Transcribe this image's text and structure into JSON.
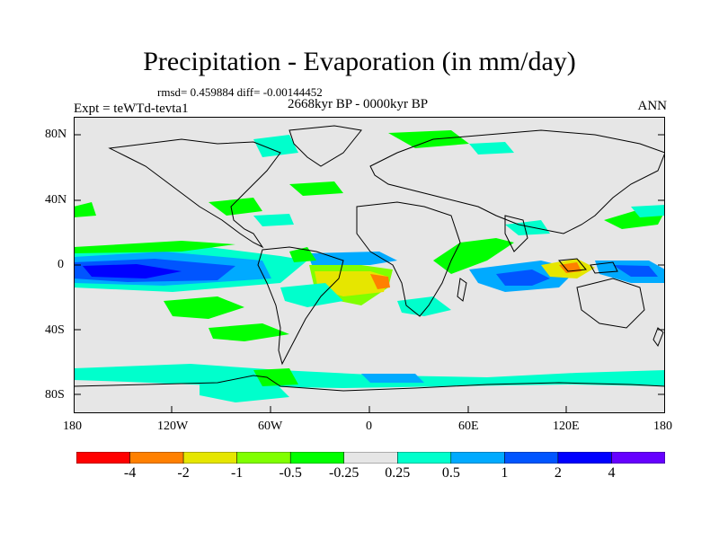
{
  "title": "Precipitation - Evaporation (in mm/day)",
  "stats": "rmsd= 0.459884 diff= -0.00144452",
  "period": "2668kyr BP - 0000kyr BP",
  "experiment": "Expt = teWTd-tevta1",
  "season": "ANN",
  "axes": {
    "lat_ticks": [
      "80N",
      "40N",
      "0",
      "40S",
      "80S"
    ],
    "lon_ticks": [
      "180",
      "120W",
      "60W",
      "0",
      "60E",
      "120E",
      "180"
    ]
  },
  "colorbar": {
    "colors": [
      "#ff0000",
      "#ff8000",
      "#e6e600",
      "#80ff00",
      "#00ff00",
      "#e6e6e6",
      "#00ffcc",
      "#00aaff",
      "#0055ff",
      "#0000ff",
      "#6600ff"
    ],
    "labels": [
      "-4",
      "-2",
      "-1",
      "-0.5",
      "-0.25",
      "0.25",
      "0.5",
      "1",
      "2",
      "4"
    ]
  },
  "colors": {
    "background": "#e6e6e6",
    "coastline": "#000000"
  }
}
